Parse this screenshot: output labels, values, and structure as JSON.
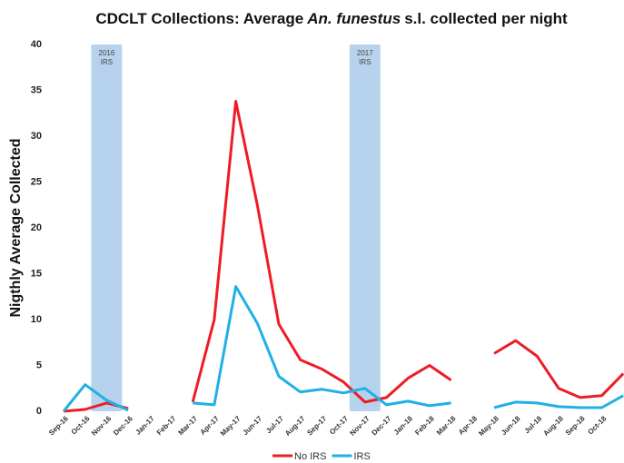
{
  "chart_data": {
    "type": "line",
    "title": [
      "CDCLT Collections: Average",
      "An. funestus",
      "s.l. collected per night"
    ],
    "y_label": "Nigthly Average Collected",
    "categories": [
      "Sep-16",
      "Oct-16",
      "Nov-16",
      "Dec-16",
      "Jan-17",
      "Feb-17",
      "Mar-17",
      "Apr-17",
      "May-17",
      "Jun-17",
      "Jul-17",
      "Aug-17",
      "Sep-17",
      "Oct-17",
      "Nov-17",
      "Dec-17",
      "Jan-18",
      "Feb-18",
      "Mar-18",
      "Apr-18",
      "May-18",
      "Jun-18",
      "Jul-18",
      "Aug-18",
      "Sep-18",
      "Oct-18",
      null
    ],
    "series": [
      {
        "name": "No IRS",
        "color": "#ee1c25",
        "values": [
          0,
          0.2,
          0.9,
          0.3,
          null,
          null,
          1.0,
          10,
          33.8,
          22.5,
          9.5,
          5.6,
          4.6,
          3.2,
          1.0,
          1.5,
          3.6,
          5.0,
          3.4,
          null,
          6.3,
          7.7,
          6.0,
          2.5,
          1.5,
          1.7,
          4.1
        ]
      },
      {
        "name": "IRS",
        "color": "#1fb1e6",
        "values": [
          0,
          2.9,
          1.2,
          0.1,
          null,
          null,
          0.9,
          0.7,
          13.6,
          9.6,
          3.8,
          2.1,
          2.4,
          2.0,
          2.5,
          0.7,
          1.1,
          0.6,
          0.9,
          null,
          0.4,
          1.0,
          0.9,
          0.5,
          0.4,
          0.4,
          1.7
        ]
      }
    ],
    "shaded_periods": [
      {
        "label": [
          "2016",
          "IRS"
        ],
        "category": "Nov-16",
        "color": "#9dc3e6"
      },
      {
        "label": [
          "2017",
          "IRS"
        ],
        "category": "Nov-17",
        "color": "#9dc3e6"
      }
    ],
    "ylim": [
      0,
      40
    ],
    "yticks": [
      0,
      5,
      10,
      15,
      20,
      25,
      30,
      35,
      40
    ],
    "grid": false,
    "legend": "bottom"
  }
}
